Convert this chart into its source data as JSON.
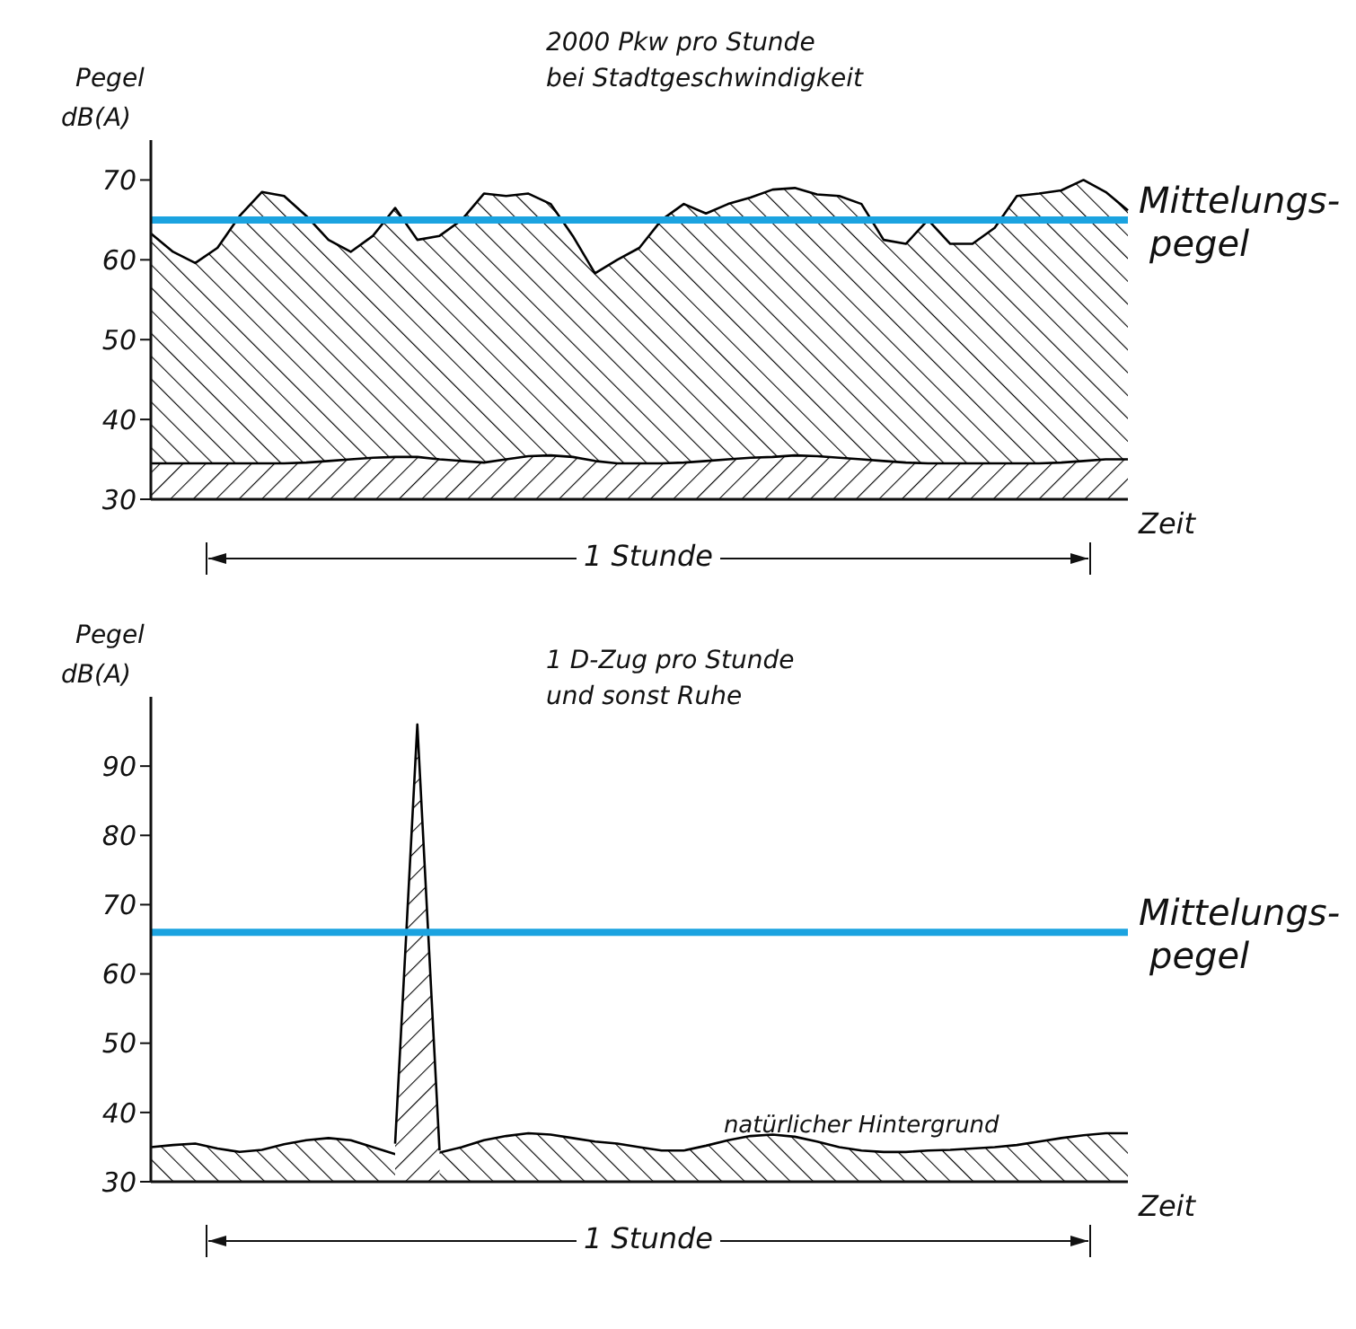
{
  "chart_data": [
    {
      "type": "area",
      "title": "2000 Pkw  pro Stunde",
      "subtitle": "bei Stadtgeschwindigkeit",
      "xlabel": "Zeit",
      "ylabel": "Pegel dB(A)",
      "annotations": [
        "1 Stunde"
      ],
      "categories": [
        null,
        null,
        null,
        null,
        null,
        null,
        null,
        null,
        null,
        null,
        null,
        null,
        null,
        null,
        null,
        null,
        null,
        null,
        null,
        null,
        null,
        null,
        null,
        null,
        null,
        null,
        null,
        null,
        null,
        null,
        null,
        null,
        null,
        null,
        null,
        null,
        null,
        null,
        null,
        null,
        null,
        null,
        null,
        null,
        null
      ],
      "series": [
        {
          "color": "#000000",
          "values": [
            63.3,
            61,
            59.6,
            61.5,
            65.5,
            68.5,
            68,
            65.5,
            62.5,
            61,
            63,
            66.5,
            62.5,
            63,
            65,
            68.3,
            68,
            68.3,
            67,
            63,
            58.3,
            60,
            61.5,
            65,
            67,
            65.8,
            67,
            67.8,
            68.8,
            69,
            68.2,
            68,
            67,
            62.5,
            62,
            65,
            62,
            62,
            64,
            68,
            68.3,
            68.7,
            70,
            68.5,
            66.2
          ]
        },
        {
          "color": "#000000",
          "values": [
            34.5,
            34.5,
            34.5,
            34.5,
            34.5,
            34.5,
            34.5,
            34.6,
            34.8,
            35,
            35.2,
            35.3,
            35.3,
            35,
            34.8,
            34.6,
            35,
            35.4,
            35.5,
            35.3,
            34.8,
            34.5,
            34.5,
            34.5,
            34.6,
            34.8,
            35,
            35.2,
            35.3,
            35.5,
            35.4,
            35.2,
            35,
            34.8,
            34.6,
            34.5,
            34.5,
            34.5,
            34.5,
            34.5,
            34.5,
            34.6,
            34.8,
            35,
            35
          ]
        }
      ],
      "ylim": [
        30,
        75
      ],
      "yticks": [
        30,
        40,
        50,
        60,
        70
      ],
      "grid": false,
      "legend": false,
      "marker": "none",
      "ref_lines": [
        {
          "axis": "y",
          "value": 65,
          "label": "Mittelungs-pegel",
          "color": "#1ba3e0"
        }
      ]
    },
    {
      "type": "area",
      "title": "1 D-Zug pro Stunde",
      "subtitle": "und sonst Ruhe",
      "xlabel": "Zeit",
      "ylabel": "Pegel dB(A)",
      "annotations": [
        "1 Stunde"
      ],
      "categories": [
        null,
        null,
        null,
        null,
        null,
        null,
        null,
        null,
        null,
        null,
        null,
        null,
        null,
        null,
        null,
        null,
        null,
        null,
        null,
        null,
        null,
        null,
        null,
        null,
        null,
        null,
        null,
        null,
        null,
        null,
        null,
        null,
        null,
        null,
        null,
        null,
        null,
        null,
        null,
        null,
        null,
        null,
        null,
        null,
        null
      ],
      "series": [
        {
          "name": "natürlicher Hintergrund",
          "color": "#000000",
          "values": [
            35,
            35.3,
            35.5,
            34.8,
            34.3,
            34.6,
            35.4,
            36,
            36.3,
            36,
            35,
            34,
            33.8,
            34.2,
            35,
            36,
            36.6,
            37,
            36.8,
            36.3,
            35.8,
            35.5,
            35,
            34.5,
            34.5,
            35.2,
            36,
            36.6,
            36.8,
            36.5,
            35.8,
            35,
            34.5,
            34.3,
            34.3,
            34.5,
            34.6,
            34.8,
            35,
            35.3,
            35.8,
            36.3,
            36.7,
            37,
            37
          ]
        },
        {
          "color": "#000000",
          "values": [
            null,
            null,
            null,
            null,
            null,
            null,
            null,
            null,
            null,
            null,
            null,
            35.5,
            96,
            34.5,
            null,
            null,
            null,
            null,
            null,
            null,
            null,
            null,
            null,
            null,
            null,
            null,
            null,
            null,
            null,
            null,
            null,
            null,
            null,
            null,
            null,
            null,
            null,
            null,
            null,
            null,
            null,
            null,
            null,
            null,
            null
          ]
        }
      ],
      "ylim": [
        30,
        100
      ],
      "yticks": [
        30,
        40,
        50,
        60,
        70,
        80,
        90
      ],
      "grid": false,
      "legend": false,
      "marker": "none",
      "ref_lines": [
        {
          "axis": "y",
          "value": 66,
          "label": "Mittelungs-pegel",
          "color": "#1ba3e0"
        }
      ]
    }
  ]
}
